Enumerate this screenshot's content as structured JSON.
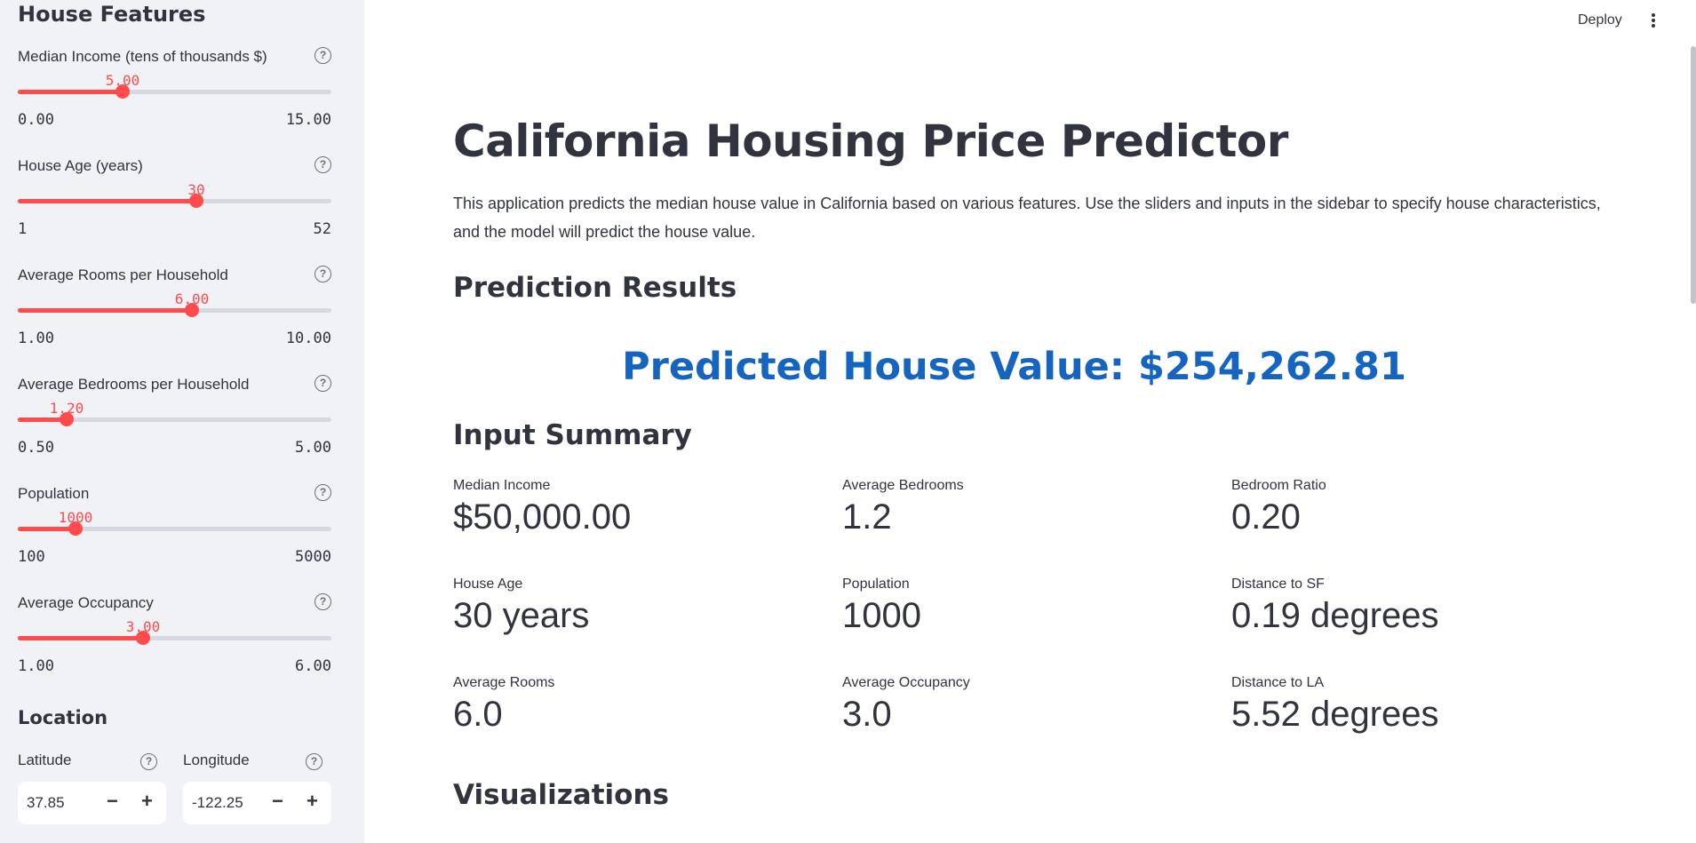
{
  "sidebar": {
    "title": "House Features",
    "sliders": [
      {
        "label": "Median Income (tens of thousands $)",
        "value": "5.00",
        "min": "0.00",
        "max": "15.00",
        "fraction": 0.333
      },
      {
        "label": "House Age (years)",
        "value": "30",
        "min": "1",
        "max": "52",
        "fraction": 0.569
      },
      {
        "label": "Average Rooms per Household",
        "value": "6.00",
        "min": "1.00",
        "max": "10.00",
        "fraction": 0.556
      },
      {
        "label": "Average Bedrooms per Household",
        "value": "1.20",
        "min": "0.50",
        "max": "5.00",
        "fraction": 0.156
      },
      {
        "label": "Population",
        "value": "1000",
        "min": "100",
        "max": "5000",
        "fraction": 0.184
      },
      {
        "label": "Average Occupancy",
        "value": "3.00",
        "min": "1.00",
        "max": "6.00",
        "fraction": 0.4
      }
    ],
    "location_title": "Location",
    "latitude": {
      "label": "Latitude",
      "value": "37.85"
    },
    "longitude": {
      "label": "Longitude",
      "value": "-122.25"
    },
    "help_glyph": "?",
    "minus_glyph": "−",
    "plus_glyph": "+"
  },
  "header": {
    "deploy_label": "Deploy"
  },
  "main": {
    "title": "California Housing Price Predictor",
    "description": "This application predicts the median house value in California based on various features. Use the sliders and inputs in the sidebar to specify house characteristics, and the model will predict the house value.",
    "prediction_heading": "Prediction Results",
    "prediction_text": "Predicted House Value: $254,262.81",
    "summary_heading": "Input Summary",
    "metrics": [
      {
        "label": "Median Income",
        "value": "$50,000.00"
      },
      {
        "label": "Average Bedrooms",
        "value": "1.2"
      },
      {
        "label": "Bedroom Ratio",
        "value": "0.20"
      },
      {
        "label": "House Age",
        "value": "30 years"
      },
      {
        "label": "Population",
        "value": "1000"
      },
      {
        "label": "Distance to SF",
        "value": "0.19 degrees"
      },
      {
        "label": "Average Rooms",
        "value": "6.0"
      },
      {
        "label": "Average Occupancy",
        "value": "3.0"
      },
      {
        "label": "Distance to LA",
        "value": "5.52 degrees"
      }
    ],
    "visualizations_heading": "Visualizations"
  },
  "colors": {
    "accent": "#ff4b4b",
    "prediction": "#1565c0",
    "sidebar_bg": "#f0f2f6"
  }
}
